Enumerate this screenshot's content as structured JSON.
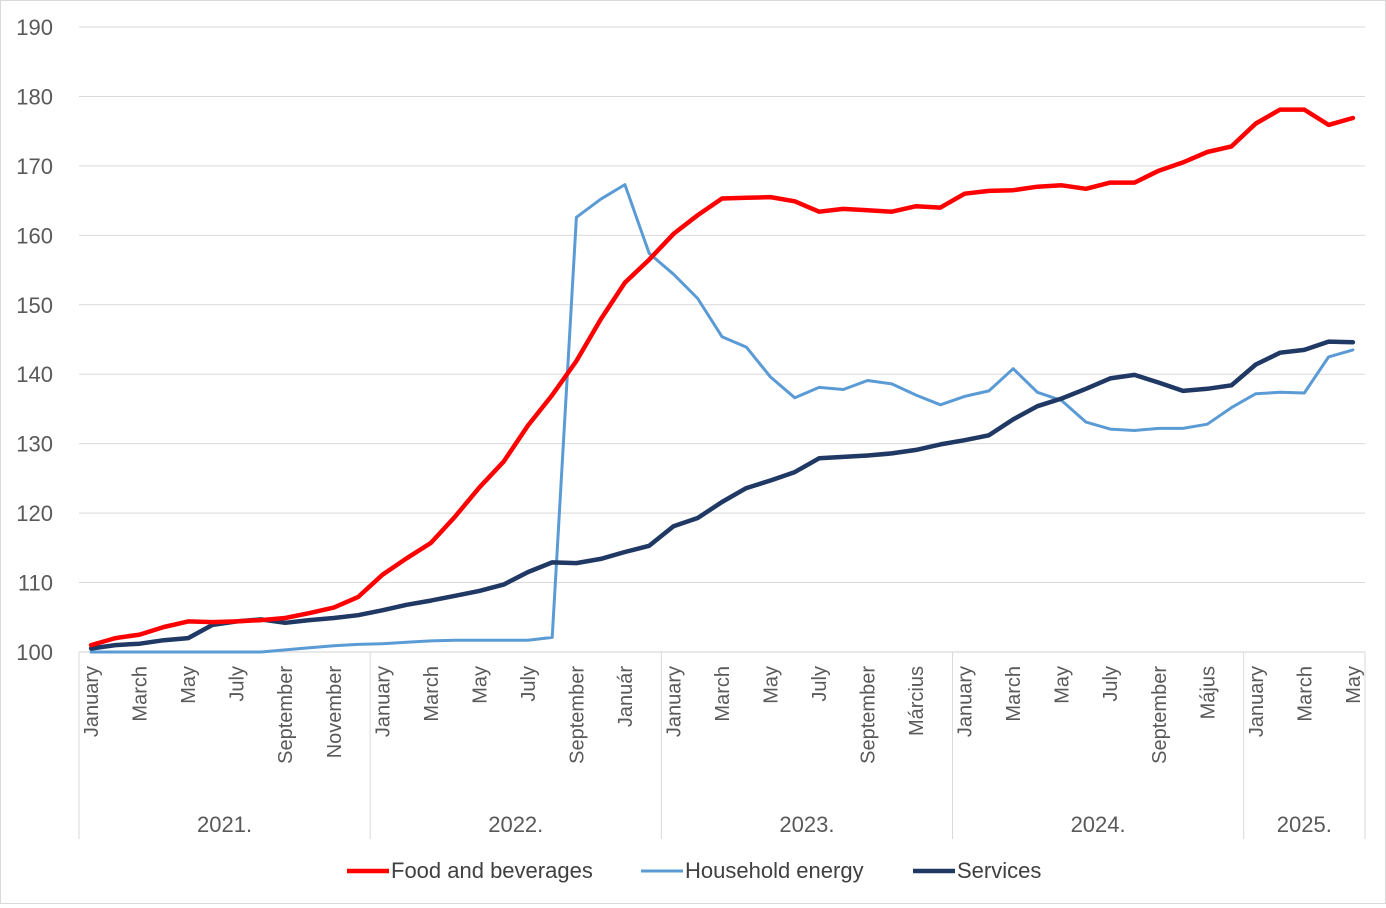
{
  "chart_data": {
    "type": "line",
    "title": "",
    "xlabel": "",
    "ylabel": "",
    "ylim": [
      100,
      190
    ],
    "yticks": [
      100,
      110,
      120,
      130,
      140,
      150,
      160,
      170,
      180,
      190
    ],
    "grid": "horizontal",
    "legend_position": "bottom",
    "years": [
      {
        "label": "2021.",
        "months": 12
      },
      {
        "label": "2022.",
        "months": 12
      },
      {
        "label": "2023.",
        "months": 12
      },
      {
        "label": "2024.",
        "months": 12
      },
      {
        "label": "2025.",
        "months": 5
      }
    ],
    "month_labels": [
      "January",
      "March",
      "May",
      "July",
      "September",
      "November",
      "January",
      "March",
      "May",
      "July",
      "September",
      "Január",
      "January",
      "March",
      "May",
      "July",
      "September",
      "Március",
      "January",
      "March",
      "May",
      "July",
      "September",
      "Május",
      "January",
      "March",
      "May"
    ],
    "series": [
      {
        "name": "Food and beverages",
        "color": "#ff0000",
        "values": [
          101.0,
          102.0,
          102.5,
          103.6,
          104.4,
          104.3,
          104.4,
          104.6,
          104.9,
          105.6,
          106.4,
          107.9,
          111.1,
          113.5,
          115.7,
          119.5,
          123.7,
          127.4,
          132.6,
          137.0,
          141.9,
          147.9,
          153.2,
          156.5,
          160.2,
          162.9,
          165.3,
          165.4,
          165.5,
          164.9,
          163.4,
          163.8,
          163.6,
          163.4,
          164.2,
          164.0,
          166.0,
          166.4,
          166.5,
          167.0,
          167.2,
          166.7,
          167.6,
          167.6,
          169.3,
          170.5,
          172.0,
          172.8,
          176.1,
          178.1,
          178.1,
          175.9,
          176.9
        ]
      },
      {
        "name": "Household energy",
        "color": "#5b9bd5",
        "values": [
          100.0,
          100.0,
          100.0,
          100.0,
          100.0,
          100.0,
          100.0,
          100.0,
          100.3,
          100.6,
          100.9,
          101.1,
          101.2,
          101.4,
          101.6,
          101.7,
          101.7,
          101.7,
          101.7,
          102.1,
          162.6,
          165.2,
          167.3,
          157.4,
          154.4,
          150.9,
          145.4,
          143.9,
          139.6,
          136.6,
          138.1,
          137.8,
          139.1,
          138.6,
          137.0,
          135.6,
          136.8,
          137.6,
          140.8,
          137.4,
          136.2,
          133.1,
          132.1,
          131.9,
          132.2,
          132.2,
          132.8,
          135.2,
          137.2,
          137.4,
          137.3,
          142.5,
          143.5
        ]
      },
      {
        "name": "Services",
        "color": "#1f3864",
        "values": [
          100.5,
          101.0,
          101.2,
          101.7,
          102.0,
          103.9,
          104.4,
          104.7,
          104.2,
          104.6,
          104.9,
          105.3,
          106.0,
          106.8,
          107.4,
          108.1,
          108.8,
          109.7,
          111.5,
          112.9,
          112.8,
          113.4,
          114.4,
          115.3,
          118.1,
          119.3,
          121.6,
          123.6,
          124.7,
          125.9,
          127.9,
          128.1,
          128.3,
          128.6,
          129.1,
          129.9,
          130.5,
          131.2,
          133.5,
          135.4,
          136.5,
          137.9,
          139.4,
          139.9,
          138.8,
          137.6,
          137.9,
          138.4,
          141.4,
          143.1,
          143.5,
          144.7,
          144.6
        ]
      }
    ]
  }
}
